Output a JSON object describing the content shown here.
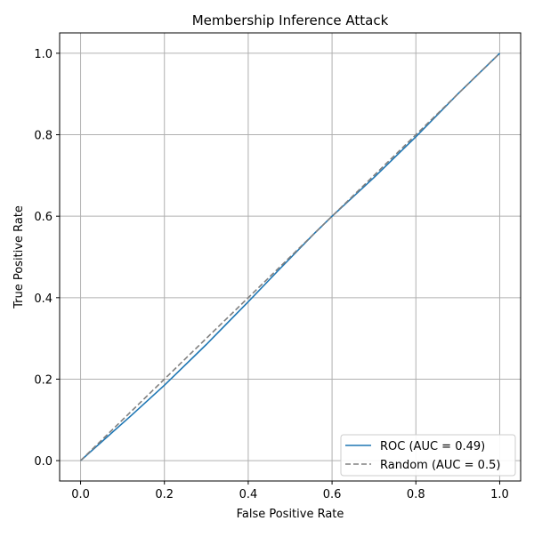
{
  "chart_data": {
    "type": "line",
    "title": "Membership Inference Attack",
    "xlabel": "False Positive Rate",
    "ylabel": "True Positive Rate",
    "xlim": [
      -0.05,
      1.05
    ],
    "ylim": [
      -0.05,
      1.05
    ],
    "xticks": [
      "0.0",
      "0.2",
      "0.4",
      "0.6",
      "0.8",
      "1.0"
    ],
    "yticks": [
      "0.0",
      "0.2",
      "0.4",
      "0.6",
      "0.8",
      "1.0"
    ],
    "grid": true,
    "legend_position": "lower-right",
    "series": [
      {
        "name": "ROC (AUC = 0.49)",
        "color": "#1f77b4",
        "style": "solid",
        "x": [
          0.0,
          0.06,
          0.12,
          0.2,
          0.3,
          0.4,
          0.47,
          0.56,
          0.6,
          0.7,
          0.8,
          0.9,
          1.0
        ],
        "y": [
          0.0,
          0.055,
          0.11,
          0.185,
          0.285,
          0.39,
          0.465,
          0.56,
          0.6,
          0.695,
          0.795,
          0.9,
          1.0
        ]
      },
      {
        "name": "Random (AUC = 0.5)",
        "color": "#808080",
        "style": "dashed",
        "x": [
          0.0,
          1.0
        ],
        "y": [
          0.0,
          1.0
        ]
      }
    ]
  }
}
